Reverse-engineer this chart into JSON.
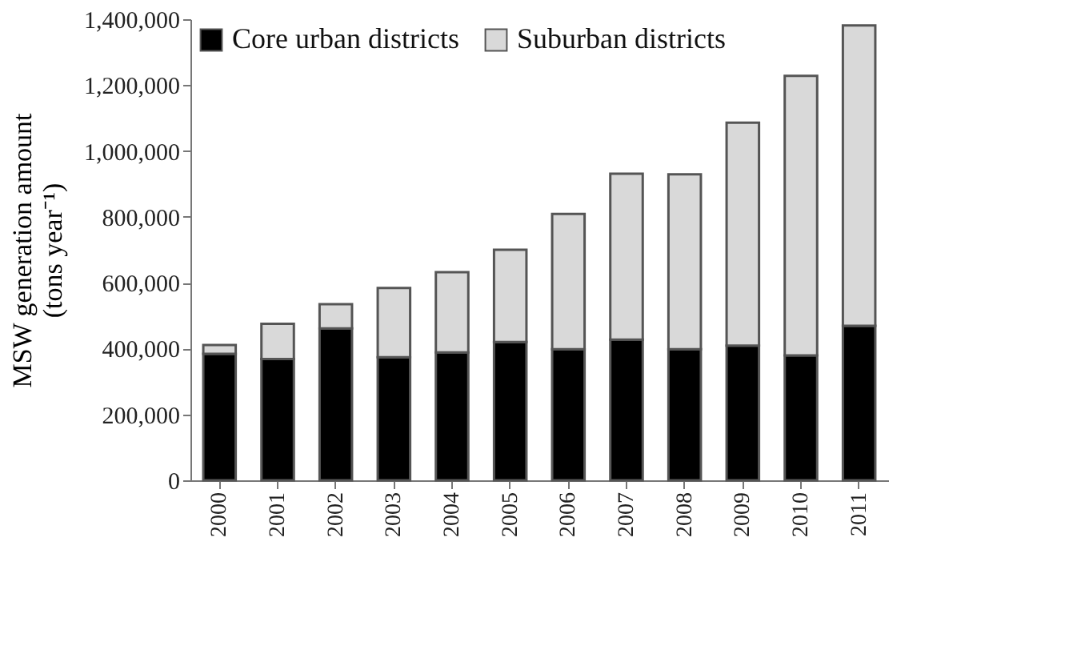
{
  "chart_data": {
    "type": "bar",
    "stacked": true,
    "ylabel": "MSW generation amount (tons year⁻¹)",
    "categories": [
      "2000",
      "2001",
      "2002",
      "2003",
      "2004",
      "2005",
      "2006",
      "2007",
      "2008",
      "2009",
      "2010",
      "2011"
    ],
    "series": [
      {
        "name": "Core urban districts",
        "color": "#000000",
        "values": [
          384000,
          368000,
          461000,
          374000,
          388000,
          420000,
          398000,
          427000,
          398000,
          409000,
          379000,
          469000
        ]
      },
      {
        "name": "Suburban districts",
        "color": "#d9d9d9",
        "values": [
          27000,
          107000,
          74000,
          210000,
          244000,
          280000,
          411000,
          504000,
          531000,
          677000,
          849000,
          912000
        ]
      }
    ],
    "ylim": [
      0,
      1400000
    ],
    "yticks": [
      0,
      {
        "value": 200000,
        "label": "200,000"
      },
      {
        "value": 400000,
        "label": "400,000"
      },
      {
        "value": 600000,
        "label": "600,000"
      },
      {
        "value": 800000,
        "label": "800,000"
      },
      {
        "value": 1000000,
        "label": "1,000,000"
      },
      {
        "value": 1200000,
        "label": "1,200,000"
      },
      {
        "value": 1400000,
        "label": "1,400,000"
      }
    ],
    "grid": false,
    "legend": "top left"
  }
}
